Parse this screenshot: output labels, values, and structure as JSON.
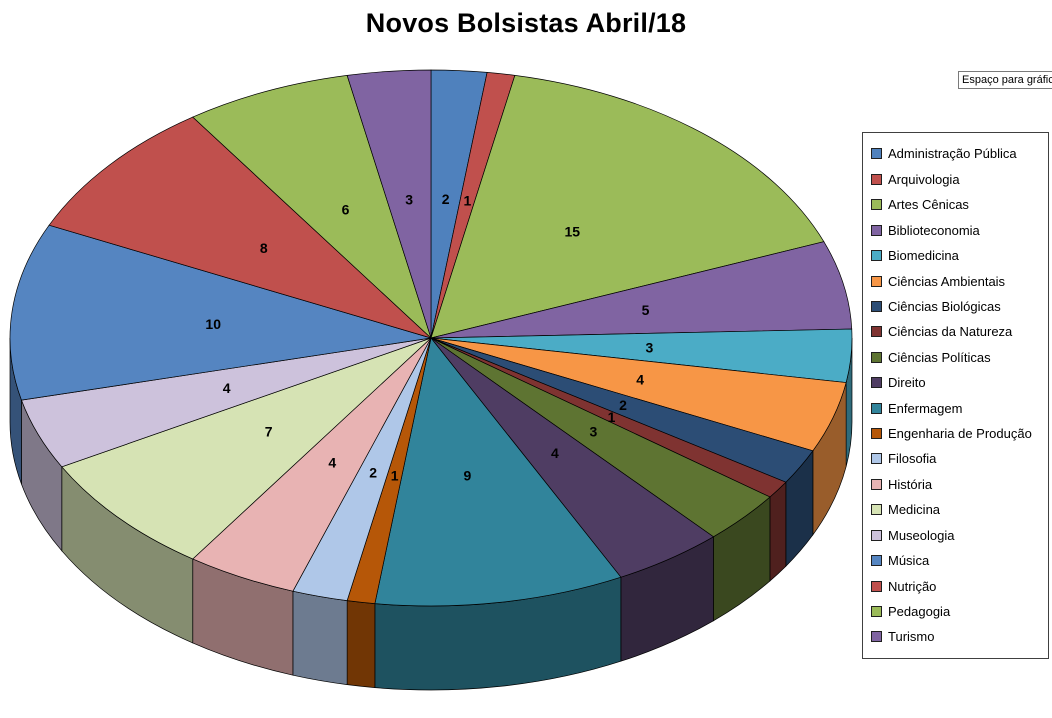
{
  "title": "Novos Bolsistas Abril/18",
  "floating_textbox": "Espaço para gráfic",
  "chart_data": {
    "type": "pie",
    "style": "3d",
    "title": "Novos Bolsistas Abril/18",
    "direction": "clockwise",
    "start_angle_deg": 0,
    "legend_position": "right",
    "data_labels": "value",
    "total": 94,
    "series": [
      {
        "label": "Administração Pública",
        "value": 2,
        "color": "#4F81BD"
      },
      {
        "label": "Arquivologia",
        "value": 1,
        "color": "#C0504D"
      },
      {
        "label": "Artes Cênicas",
        "value": 15,
        "color": "#9BBB59"
      },
      {
        "label": "Biblioteconomia",
        "value": 5,
        "color": "#8064A2"
      },
      {
        "label": "Biomedicina",
        "value": 3,
        "color": "#4BACC6"
      },
      {
        "label": "Ciências Ambientais",
        "value": 4,
        "color": "#F79646"
      },
      {
        "label": "Ciências Biológicas",
        "value": 2,
        "color": "#2C4D75"
      },
      {
        "label": "Ciências da Natureza",
        "value": 1,
        "color": "#7F3331"
      },
      {
        "label": "Ciências Políticas",
        "value": 3,
        "color": "#5E7432"
      },
      {
        "label": "Direito",
        "value": 4,
        "color": "#4F3D63"
      },
      {
        "label": "Enfermagem",
        "value": 9,
        "color": "#31849B"
      },
      {
        "label": "Engenharia de Produção",
        "value": 1,
        "color": "#B65708"
      },
      {
        "label": "Filosofia",
        "value": 2,
        "color": "#AFC7E8"
      },
      {
        "label": "História",
        "value": 4,
        "color": "#E8B3B3"
      },
      {
        "label": "Medicina",
        "value": 7,
        "color": "#D6E3B4"
      },
      {
        "label": "Museologia",
        "value": 4,
        "color": "#CDC2DC"
      },
      {
        "label": "Música",
        "value": 10,
        "color": "#5585C1"
      },
      {
        "label": "Nutrição",
        "value": 8,
        "color": "#C0504D"
      },
      {
        "label": "Pedagogia",
        "value": 6,
        "color": "#9BBB59"
      },
      {
        "label": "Turismo",
        "value": 3,
        "color": "#8064A2"
      }
    ]
  }
}
